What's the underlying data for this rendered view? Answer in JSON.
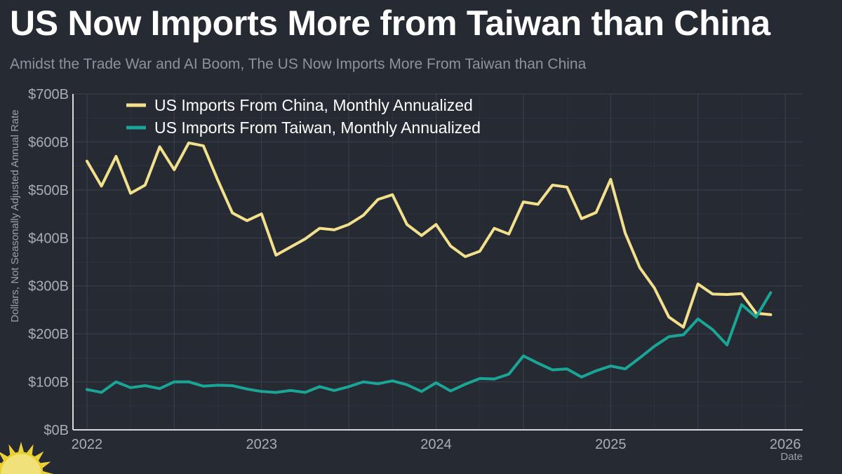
{
  "header": {
    "title": "US Now Imports More from Taiwan than China",
    "subtitle": "Amidst the Trade War and AI Boom, The US Now Imports More From Taiwan than China"
  },
  "colors": {
    "china": "#f3e08d",
    "taiwan": "#1aa597",
    "grid": "#3c414b",
    "axis": "#d9d9d9"
  },
  "chart_data": {
    "type": "line",
    "title": "US Now Imports More from Taiwan than China",
    "subtitle": "Amidst the Trade War and AI Boom, The US Now Imports More From Taiwan than China",
    "xlabel": "Date",
    "ylabel": "Dollars, Not Seasonally Adjusted Annual Rate",
    "ylim": [
      0,
      700
    ],
    "xlim": [
      2021.92,
      2026.1
    ],
    "x_ticks": [
      2022,
      2023,
      2024,
      2025,
      2026
    ],
    "x_tick_labels": [
      "2022",
      "2023",
      "2024",
      "2025",
      "2026"
    ],
    "y_ticks": [
      0,
      100,
      200,
      300,
      400,
      500,
      600,
      700
    ],
    "y_tick_labels": [
      "$0B",
      "$100B",
      "$200B",
      "$300B",
      "$400B",
      "$500B",
      "$600B",
      "$700B"
    ],
    "legend_position": "top-left",
    "start_year": 2022,
    "points_per_year": 12,
    "series": [
      {
        "name": "US Imports From China, Monthly Annualized",
        "color": "#f3e08d",
        "values": [
          560,
          508,
          570,
          493,
          510,
          590,
          542,
          598,
          592,
          520,
          452,
          436,
          450,
          364,
          381,
          398,
          420,
          417,
          428,
          447,
          480,
          490,
          428,
          405,
          428,
          383,
          361,
          372,
          420,
          408,
          475,
          470,
          510,
          506,
          440,
          453,
          522,
          410,
          338,
          296,
          235,
          214,
          304,
          283,
          282,
          284,
          243,
          240
        ]
      },
      {
        "name": "US Imports From Taiwan, Monthly Annualized",
        "color": "#1aa597",
        "values": [
          84,
          78,
          100,
          88,
          92,
          86,
          100,
          100,
          91,
          93,
          92,
          85,
          80,
          78,
          82,
          78,
          90,
          82,
          90,
          100,
          96,
          102,
          94,
          80,
          98,
          81,
          95,
          107,
          106,
          116,
          154,
          139,
          125,
          127,
          110,
          123,
          133,
          127,
          150,
          174,
          194,
          198,
          231,
          209,
          177,
          261,
          235,
          286
        ]
      }
    ]
  }
}
